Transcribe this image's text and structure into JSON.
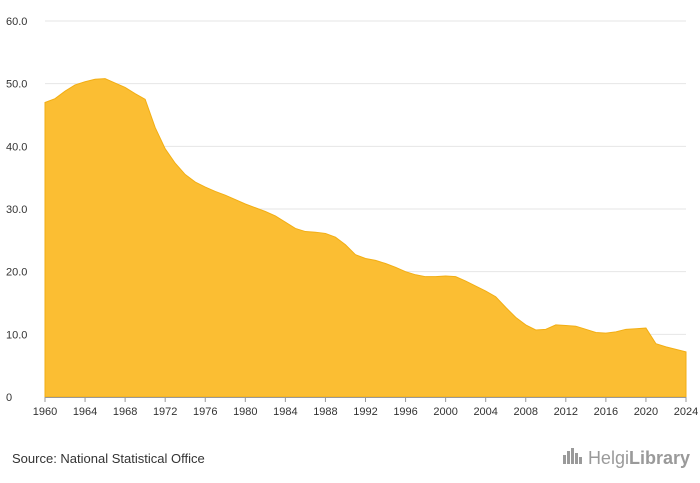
{
  "source_text": "Source: National Statistical Office",
  "brand": {
    "part1": "Helgi",
    "part2": "Library",
    "logo_icon": "city-skyline-icon"
  },
  "colors": {
    "area_fill": "#FBBE33",
    "area_stroke": "#F2AE14",
    "grid": "#e6e6e6",
    "axis": "#999999"
  },
  "chart_data": {
    "type": "area",
    "title": "",
    "xlabel": "",
    "ylabel": "",
    "xlim": [
      1960,
      2024
    ],
    "ylim": [
      0,
      60
    ],
    "y_ticks": [
      {
        "value": 0,
        "label": "0"
      },
      {
        "value": 10,
        "label": "10.0"
      },
      {
        "value": 20,
        "label": "20.0"
      },
      {
        "value": 30,
        "label": "30.0"
      },
      {
        "value": 40,
        "label": "40.0"
      },
      {
        "value": 50,
        "label": "50.0"
      },
      {
        "value": 60,
        "label": "60.0"
      }
    ],
    "x_ticks": [
      "1960",
      "1964",
      "1968",
      "1972",
      "1976",
      "1980",
      "1984",
      "1988",
      "1992",
      "1996",
      "2000",
      "2004",
      "2008",
      "2012",
      "2016",
      "2020",
      "2024"
    ],
    "grid": true,
    "legend": "none",
    "series": [
      {
        "x": [
          1960,
          1961,
          1962,
          1963,
          1964,
          1965,
          1966,
          1967,
          1968,
          1969,
          1970,
          1971,
          1972,
          1973,
          1974,
          1975,
          1976,
          1977,
          1978,
          1979,
          1980,
          1981,
          1982,
          1983,
          1984,
          1985,
          1986,
          1987,
          1988,
          1989,
          1990,
          1991,
          1992,
          1993,
          1994,
          1995,
          1996,
          1997,
          1998,
          1999,
          2000,
          2001,
          2002,
          2003,
          2004,
          2005,
          2006,
          2007,
          2008,
          2009,
          2010,
          2011,
          2012,
          2013,
          2014,
          2015,
          2016,
          2017,
          2018,
          2019,
          2020,
          2021,
          2022,
          2023,
          2024
        ],
        "values": [
          47.0,
          47.6,
          48.8,
          49.8,
          50.3,
          50.7,
          50.8,
          50.1,
          49.4,
          48.4,
          47.5,
          43.0,
          39.6,
          37.3,
          35.5,
          34.3,
          33.5,
          32.8,
          32.2,
          31.5,
          30.8,
          30.2,
          29.6,
          28.9,
          27.9,
          26.9,
          26.4,
          26.3,
          26.1,
          25.5,
          24.3,
          22.7,
          22.1,
          21.8,
          21.3,
          20.7,
          20.0,
          19.5,
          19.2,
          19.2,
          19.3,
          19.2,
          18.5,
          17.7,
          16.9,
          16.0,
          14.3,
          12.7,
          11.5,
          10.7,
          10.8,
          11.5,
          11.4,
          11.3,
          10.8,
          10.3,
          10.2,
          10.4,
          10.8,
          10.9,
          11.0,
          8.5,
          8.0,
          7.6,
          7.2
        ]
      }
    ]
  }
}
